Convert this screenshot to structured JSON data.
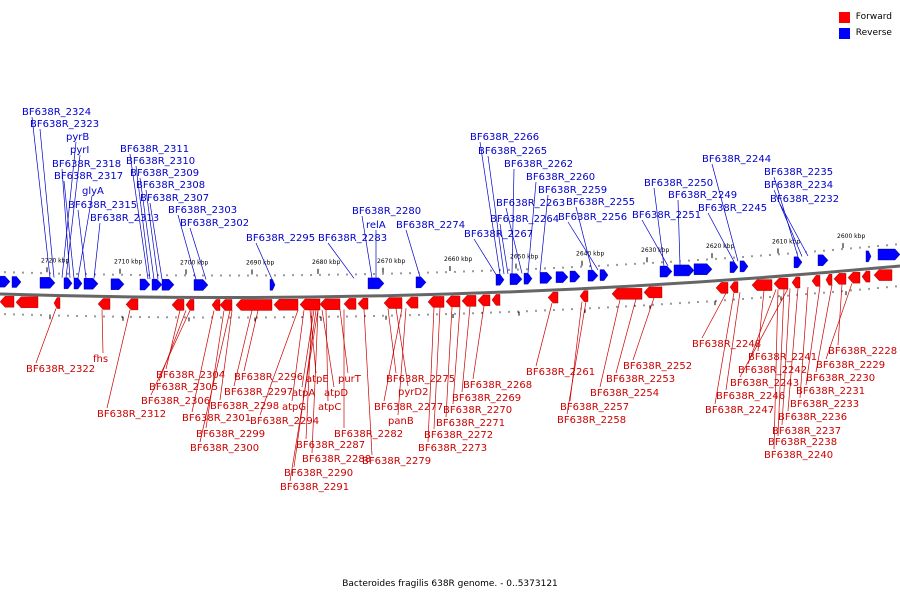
{
  "caption": "Bacteroides fragilis 638R genome. - 0..5373121",
  "legend": [
    {
      "label": "Forward",
      "color": "#ff0000"
    },
    {
      "label": "Reverse",
      "color": "#0000ff"
    }
  ],
  "ticks": [
    "2720 kbp",
    "2710 kbp",
    "2700 kbp",
    "2690 kbp",
    "2680 kbp",
    "2670 kbp",
    "2660 kbp",
    "2650 kbp",
    "2640 kbp",
    "2630 kbp",
    "2620 kbp",
    "2610 kbp",
    "2600 kbp"
  ],
  "reverse_labels": [
    "BF638R_2324",
    "BF638R_2323",
    "pyrB",
    "pyrI",
    "BF638R_2318",
    "BF638R_2317",
    "glyA",
    "BF638R_2315",
    "BF638R_2313",
    "BF638R_2311",
    "BF638R_2310",
    "BF638R_2309",
    "BF638R_2308",
    "BF638R_2307",
    "BF638R_2303",
    "BF638R_2302",
    "BF638R_2295",
    "BF638R_2283",
    "BF638R_2280",
    "relA",
    "BF638R_2274",
    "BF638R_2266",
    "BF638R_2265",
    "BF638R_2262",
    "BF638R_2260",
    "BF638R_2259",
    "BF638R_2263",
    "BF638R_2255",
    "BF638R_2264",
    "BF638R_2256",
    "BF638R_2267",
    "BF638R_2244",
    "BF638R_2250",
    "BF638R_2249",
    "BF638R_2251",
    "BF638R_2245",
    "BF638R_2235",
    "BF638R_2234",
    "BF638R_2232"
  ],
  "forward_labels": [
    "fhs",
    "BF638R_2322",
    "BF638R_2304",
    "BF638R_2305",
    "BF638R_2306",
    "BF638R_2312",
    "BF638R_2296",
    "BF638R_2297",
    "BF638R_2298",
    "BF638R_2301",
    "BF638R_2299",
    "BF638R_2300",
    "atpE",
    "atpA",
    "atpD",
    "purT",
    "atpG",
    "atpC",
    "BF638R_2294",
    "BF638R_2287",
    "BF638R_2288",
    "BF638R_2290",
    "BF638R_2291",
    "BF638R_2282",
    "BF638R_2279",
    "BF638R_2275",
    "pyrD2",
    "BF638R_2277",
    "panB",
    "BF638R_2268",
    "BF638R_2269",
    "BF638R_2270",
    "BF638R_2271",
    "BF638R_2272",
    "BF638R_2273",
    "BF638R_2261",
    "BF638R_2252",
    "BF638R_2253",
    "BF638R_2254",
    "BF638R_2257",
    "BF638R_2258",
    "BF638R_2248",
    "BF638R_2241",
    "BF638R_2242",
    "BF638R_2243",
    "BF638R_2246",
    "BF638R_2247",
    "BF638R_2228",
    "BF638R_2229",
    "BF638R_2230",
    "BF638R_2231",
    "BF638R_2233",
    "BF638R_2236",
    "BF638R_2237",
    "BF638R_2238",
    "BF638R_2240"
  ]
}
